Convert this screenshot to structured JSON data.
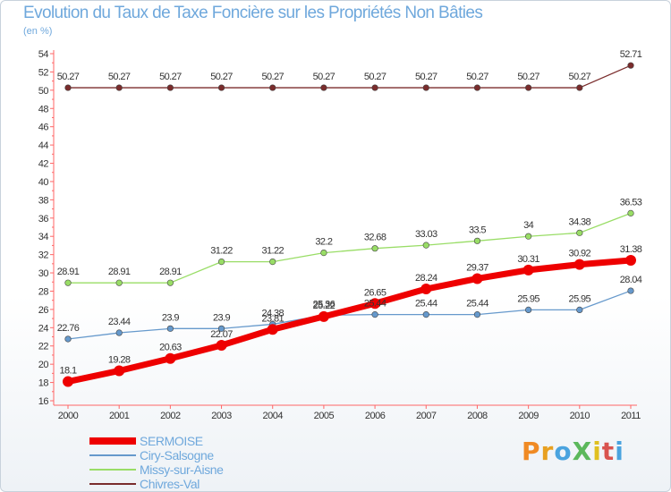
{
  "title": "Evolution du Taux de Taxe Foncière sur les Propriétés Non Bâties",
  "unit_label": "(en %)",
  "logo": {
    "text": "ProXiti",
    "letter_colors": [
      "#f08a24",
      "#e8a020",
      "#4aa3df",
      "#5cb85c",
      "#e0c020",
      "#d9534f",
      "#4aa3df"
    ]
  },
  "chart_data": {
    "type": "line",
    "x": [
      "2000",
      "2001",
      "2002",
      "2003",
      "2004",
      "2005",
      "2006",
      "2007",
      "2008",
      "2009",
      "2010",
      "2011"
    ],
    "ylim": [
      16,
      54
    ],
    "yticks": [
      16,
      18,
      20,
      22,
      24,
      26,
      28,
      30,
      32,
      34,
      36,
      38,
      40,
      42,
      44,
      46,
      48,
      50,
      52,
      54
    ],
    "grid": false,
    "legend_position": "bottom-left",
    "series": [
      {
        "name": "SERMOISE",
        "color": "#ee0000",
        "values": [
          18.1,
          19.28,
          20.63,
          22.07,
          23.81,
          25.22,
          26.65,
          28.24,
          29.37,
          30.31,
          30.92,
          31.38
        ],
        "labels": [
          "18.1",
          "19.28",
          "20.63",
          "22.07",
          "23.81",
          "25.22",
          "26.65",
          "28.24",
          "29.37",
          "30.31",
          "30.92",
          "31.38"
        ]
      },
      {
        "name": "Ciry-Salsogne",
        "color": "#6699cc",
        "values": [
          22.76,
          23.44,
          23.9,
          23.9,
          24.38,
          25.36,
          25.44,
          25.44,
          25.44,
          25.95,
          25.95,
          28.04
        ],
        "labels": [
          "22.76",
          "23.44",
          "23.9",
          "23.9",
          "24.38",
          "25.36",
          "25.44",
          "25.44",
          "25.44",
          "25.95",
          "25.95",
          "28.04"
        ]
      },
      {
        "name": "Missy-sur-Aisne",
        "color": "#99dd66",
        "values": [
          28.91,
          28.91,
          28.91,
          31.22,
          31.22,
          32.2,
          32.68,
          33.03,
          33.5,
          34,
          34.38,
          36.53
        ],
        "labels": [
          "28.91",
          "28.91",
          "28.91",
          "31.22",
          "31.22",
          "32.2",
          "32.68",
          "33.03",
          "33.5",
          "34",
          "34.38",
          "36.53"
        ]
      },
      {
        "name": "Chivres-Val",
        "color": "#7a2c2c",
        "values": [
          50.27,
          50.27,
          50.27,
          50.27,
          50.27,
          50.27,
          50.27,
          50.27,
          50.27,
          50.27,
          50.27,
          52.71
        ],
        "labels": [
          "50.27",
          "50.27",
          "50.27",
          "50.27",
          "50.27",
          "50.27",
          "50.27",
          "50.27",
          "50.27",
          "50.27",
          "50.27",
          "52.71"
        ]
      }
    ]
  }
}
